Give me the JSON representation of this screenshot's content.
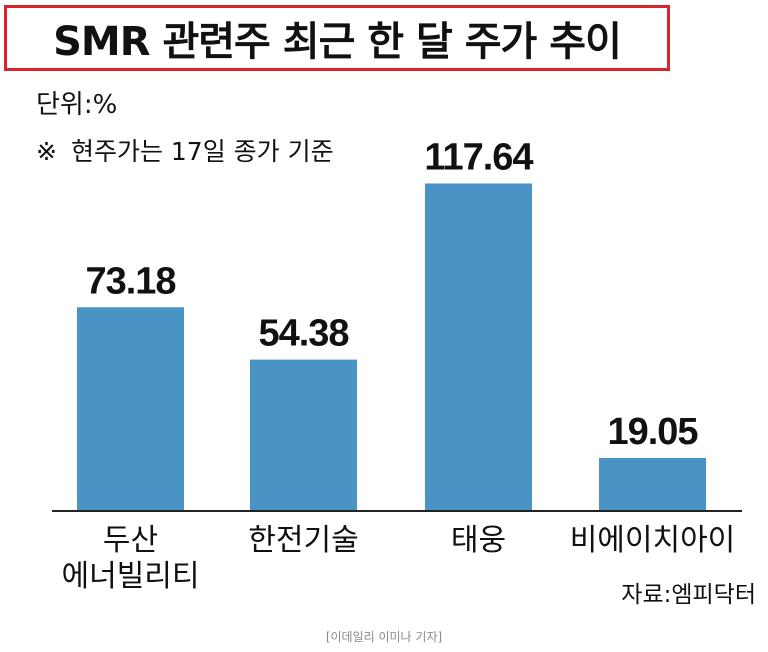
{
  "title": "SMR 관련주 최근 한 달 주가 추이",
  "unit_label": "단위:%",
  "note": {
    "mark": "※",
    "text": "현주가는 17일 종가 기준"
  },
  "source": "자료:엠피닥터",
  "credit": "[이데일리 이미나 기자]",
  "colors": {
    "bar": "#4a93c5",
    "title_border": "#d6262b",
    "text": "#111111"
  },
  "chart_data": {
    "type": "bar",
    "title": "SMR 관련주 최근 한 달 주가 추이",
    "unit": "%",
    "categories": [
      [
        "두산",
        "에너빌리티"
      ],
      [
        "한전기술"
      ],
      [
        "태웅"
      ],
      [
        "비에이치아이"
      ]
    ],
    "values": [
      73.18,
      54.38,
      117.64,
      19.05
    ],
    "data_labels": [
      "73.18",
      "54.38",
      "117.64",
      "19.05"
    ],
    "ylim": [
      0,
      120
    ],
    "grid": false,
    "legend": "none"
  }
}
